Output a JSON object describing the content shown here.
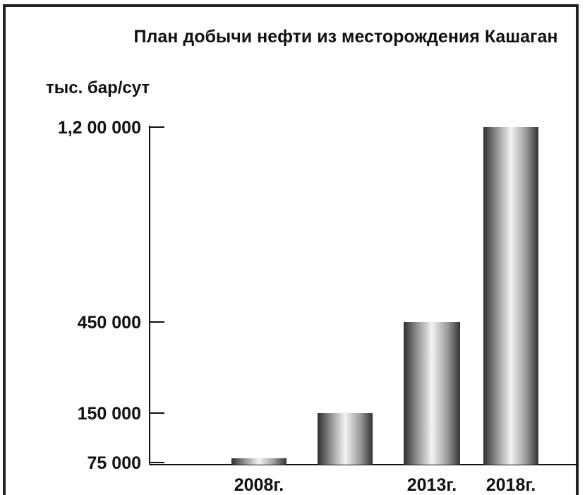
{
  "chart_data": {
    "type": "bar",
    "title": "План добычи нефти из месторождения Кашаган",
    "ylabel": "тыс. бар/сут",
    "xlabel": "",
    "categories": [
      "2008г.",
      "",
      "2013г.",
      "2018г."
    ],
    "values": [
      75000,
      150000,
      450000,
      1200000
    ],
    "y_ticks": [
      75000,
      150000,
      450000,
      1200000
    ],
    "y_tick_labels": [
      "75 000",
      "150 000",
      "450 000",
      "1,2 00 000"
    ],
    "ylim": [
      75000,
      1200000
    ],
    "grid": false,
    "legend": "none"
  },
  "colors": {
    "frame": "#222222",
    "axis": "#111111",
    "bar_dark": "#3a3a3a",
    "bar_light": "#f1f1f1"
  }
}
